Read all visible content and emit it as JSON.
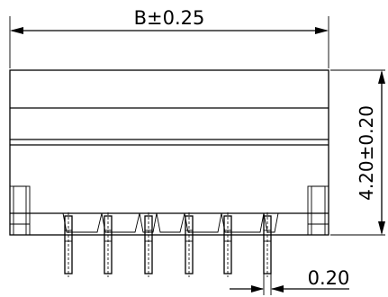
{
  "dimensions": {
    "width_label": "B±0.25",
    "height_label": "4.20±0.20",
    "pin_width_label": "0.20"
  },
  "pin_count": 6,
  "colors": {
    "line": "#000000",
    "background": "#ffffff"
  }
}
